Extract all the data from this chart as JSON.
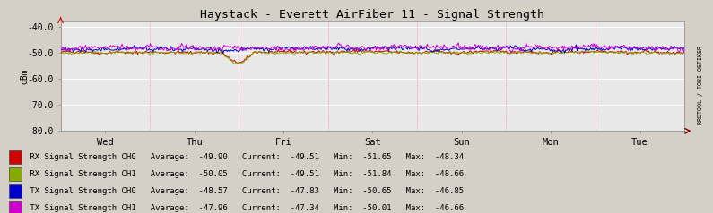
{
  "title": "Haystack - Everett AirFiber 11 - Signal Strength",
  "ylabel": "dBm",
  "ylim": [
    -80,
    -38
  ],
  "yticks": [
    -80.0,
    -70.0,
    -60.0,
    -50.0,
    -40.0
  ],
  "x_labels": [
    "Wed",
    "Thu",
    "Fri",
    "Sat",
    "Sun",
    "Mon",
    "Tue"
  ],
  "bg_color": "#d4d0c8",
  "plot_bg_color": "#e8e8e8",
  "line_colors": [
    "#cc0000",
    "#88aa00",
    "#0000cc",
    "#cc00cc"
  ],
  "legend_data": [
    {
      "label": "RX Signal Strength CH0",
      "avg": "-49.90",
      "cur": "-49.51",
      "min": "-51.65",
      "max": "-48.34",
      "color": "#cc0000"
    },
    {
      "label": "RX Signal Strength CH1",
      "avg": "-50.05",
      "cur": "-49.51",
      "min": "-51.84",
      "max": "-48.66",
      "color": "#88aa00"
    },
    {
      "label": "TX Signal Strength CH0",
      "avg": "-48.57",
      "cur": "-47.83",
      "min": "-50.65",
      "max": "-46.85",
      "color": "#0000cc"
    },
    {
      "label": "TX Signal Strength CH1",
      "avg": "-47.96",
      "cur": "-47.34",
      "min": "-50.01",
      "max": "-46.66",
      "color": "#cc00cc"
    }
  ],
  "averages": [
    -49.9,
    -50.05,
    -48.57,
    -47.96
  ],
  "noise_amplitudes": [
    0.7,
    0.5,
    1.0,
    1.2
  ],
  "sidebar_text": "RRDTOOL / TOBI OETIKER",
  "n_points": 600
}
